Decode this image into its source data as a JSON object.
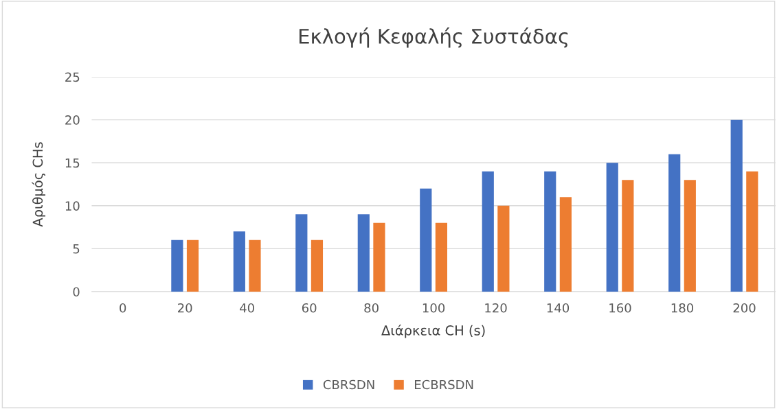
{
  "chart_data": {
    "type": "bar",
    "title": "Εκλογή Κεφαλής Συστάδας",
    "xlabel": "Διάρκεια CH (s)",
    "ylabel": "Αριθμός CHs",
    "categories": [
      "0",
      "20",
      "40",
      "60",
      "80",
      "100",
      "120",
      "140",
      "160",
      "180",
      "200"
    ],
    "series": [
      {
        "name": "CBRSDN",
        "color": "#4472c4",
        "values": [
          0,
          6,
          7,
          9,
          9,
          12,
          14,
          14,
          15,
          16,
          20
        ]
      },
      {
        "name": "ECBRSDN",
        "color": "#ed7d31",
        "values": [
          0,
          6,
          6,
          6,
          8,
          8,
          10,
          11,
          13,
          13,
          14
        ]
      }
    ],
    "ylim": [
      0,
      25
    ],
    "yticks": [
      0,
      5,
      10,
      15,
      20,
      25
    ],
    "grid": "y",
    "legend": "bottom"
  }
}
